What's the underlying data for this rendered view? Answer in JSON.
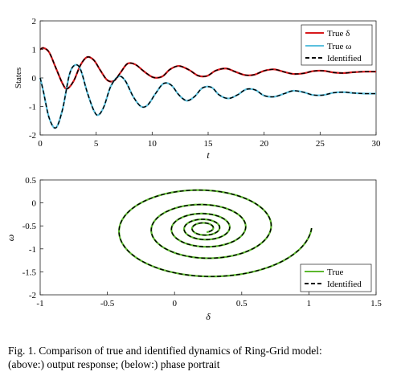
{
  "figure": {
    "caption_line1": "Fig. 1.  Comparison of true and identified dynamics of Ring-Grid model:",
    "caption_line2": "(above:) output response; (below:) phase portrait"
  },
  "chart_data": [
    {
      "type": "line",
      "xlabel": "t",
      "ylabel": "States",
      "xlim": [
        0,
        30
      ],
      "ylim": [
        -2,
        2
      ],
      "xticks": [
        "0",
        "5",
        "10",
        "15",
        "20",
        "25",
        "30"
      ],
      "yticks": [
        "2",
        "1",
        "0",
        "-1",
        "-2"
      ],
      "legend": {
        "placement": "top-right",
        "entries": [
          "True δ",
          "True ω",
          "Identified"
        ]
      },
      "series": [
        {
          "name": "True δ",
          "color": "#d7191c",
          "x": [
            0,
            0.3,
            0.8,
            1.4,
            2.0,
            2.4,
            3.0,
            3.6,
            4.2,
            4.8,
            5.4,
            6.0,
            6.6,
            7.2,
            7.8,
            8.5,
            9.3,
            10.1,
            10.9,
            11.6,
            12.4,
            13.3,
            14.1,
            14.9,
            15.7,
            16.6,
            17.4,
            18.3,
            19.1,
            20.0,
            20.9,
            21.8,
            22.6,
            23.5,
            24.4,
            25.3,
            26.2,
            27.1,
            28.0,
            29.0,
            30.0
          ],
          "values": [
            1.0,
            1.05,
            0.9,
            0.35,
            -0.2,
            -0.38,
            -0.1,
            0.45,
            0.73,
            0.62,
            0.25,
            -0.08,
            -0.1,
            0.2,
            0.5,
            0.47,
            0.22,
            0.02,
            0.05,
            0.3,
            0.42,
            0.28,
            0.08,
            0.07,
            0.26,
            0.33,
            0.22,
            0.1,
            0.11,
            0.25,
            0.3,
            0.21,
            0.14,
            0.16,
            0.24,
            0.25,
            0.19,
            0.17,
            0.2,
            0.22,
            0.22
          ]
        },
        {
          "name": "True ω",
          "color": "#5bc0de",
          "x": [
            0,
            0.3,
            0.8,
            1.4,
            2.0,
            2.6,
            3.1,
            3.6,
            4.2,
            4.8,
            5.2,
            5.7,
            6.3,
            7.0,
            7.6,
            8.3,
            9.0,
            9.6,
            10.3,
            11.0,
            11.7,
            12.4,
            13.1,
            13.8,
            14.5,
            15.3,
            16.0,
            16.8,
            17.6,
            18.4,
            19.2,
            20.0,
            20.9,
            21.8,
            22.6,
            23.5,
            24.4,
            25.3,
            26.2,
            27.1,
            28.0,
            29.0,
            30.0
          ],
          "values": [
            0.0,
            -0.5,
            -1.4,
            -1.75,
            -1.1,
            0.1,
            0.45,
            0.3,
            -0.5,
            -1.15,
            -1.3,
            -1.0,
            -0.3,
            0.05,
            -0.1,
            -0.65,
            -1.0,
            -0.95,
            -0.55,
            -0.2,
            -0.25,
            -0.6,
            -0.8,
            -0.65,
            -0.35,
            -0.33,
            -0.6,
            -0.72,
            -0.6,
            -0.4,
            -0.42,
            -0.62,
            -0.66,
            -0.55,
            -0.45,
            -0.5,
            -0.6,
            -0.6,
            -0.52,
            -0.5,
            -0.53,
            -0.55,
            -0.55
          ]
        },
        {
          "name": "Identified",
          "color": "#000000",
          "style": "dashed",
          "overlays": [
            "True δ",
            "True ω"
          ]
        }
      ]
    },
    {
      "type": "line",
      "xlabel": "δ",
      "ylabel": "ω",
      "xlim": [
        -1,
        1.5
      ],
      "ylim": [
        -2,
        0.5
      ],
      "xticks": [
        "-1",
        "-0.5",
        "0",
        "0.5",
        "1",
        "1.5"
      ],
      "yticks": [
        "0.5",
        "0",
        "-0.5",
        "-1",
        "-1.5",
        "-2"
      ],
      "legend": {
        "placement": "bottom-right",
        "entries": [
          "True",
          "Identified"
        ]
      },
      "series": [
        {
          "name": "True",
          "color": "#5cb82e",
          "curve": "damped spiral from (1, 0) toward (0.22, -0.55)"
        },
        {
          "name": "Identified",
          "color": "#000000",
          "style": "dashed",
          "overlays": [
            "True"
          ]
        }
      ]
    }
  ]
}
